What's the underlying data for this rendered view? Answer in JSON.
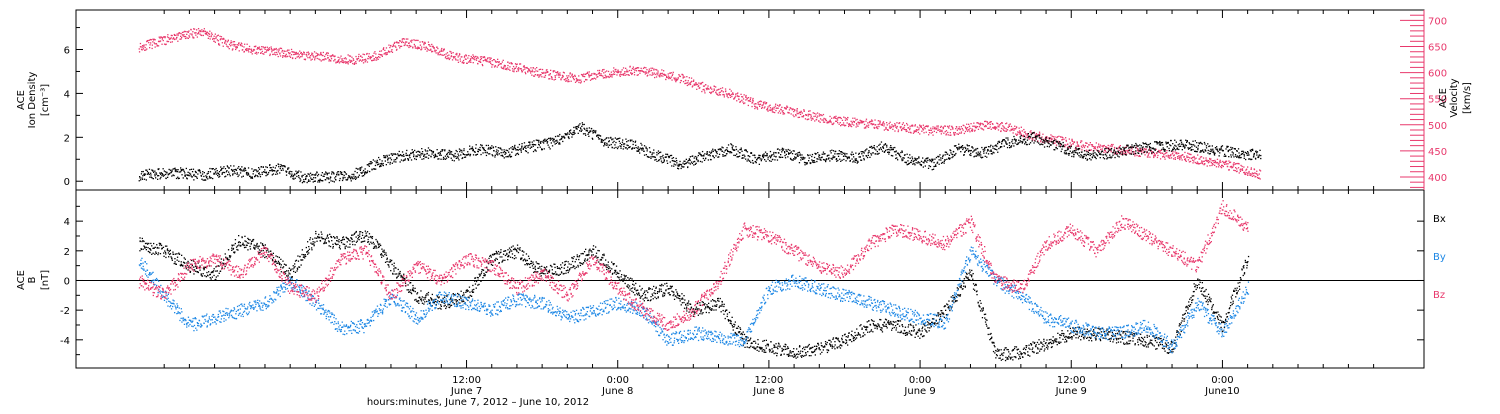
{
  "chart_data": {
    "x_start": "2012-06-06T05:00",
    "x_end": "2012-06-10T16:00",
    "x_tick_labels": [
      "12:00",
      "0:00",
      "12:00",
      "0:00",
      "12:00",
      "0:00"
    ],
    "x_tick_sublabels": [
      "June 7",
      "June 8",
      "June 8",
      "June 9",
      "June 9",
      "June10"
    ],
    "x_tick_hours": [
      31,
      43,
      55,
      67,
      79,
      91
    ],
    "xlabel": "hours:minutes, June  7, 2012 – June 10, 2012",
    "colors": {
      "black": "#000000",
      "pink": "#e8386c",
      "blue": "#1e88e5",
      "axis": "#000000"
    },
    "panels": [
      {
        "name": "plasma",
        "type": "scatter",
        "left_axis": {
          "label1": "ACE",
          "label2": "Ion Density",
          "units": "[cm⁻³]",
          "ylim": [
            -0.4,
            7.8
          ],
          "ticks": [
            0,
            2,
            4,
            6
          ]
        },
        "right_axis": {
          "label1": "ACE",
          "label2": "Velocity",
          "units": "[km/s]",
          "ylim": [
            375,
            720
          ],
          "ticks": [
            400,
            450,
            500,
            550,
            600,
            650,
            700
          ]
        },
        "series": [
          {
            "axis": "right",
            "color": "pink",
            "x": [
              5,
              8,
              10,
              12,
              14,
              16,
              18,
              20,
              22,
              24,
              26,
              28,
              30,
              32,
              34,
              36,
              38,
              40,
              42,
              44,
              46,
              48,
              50,
              52,
              54,
              56,
              58,
              60,
              62,
              64,
              66,
              68,
              70,
              72,
              74,
              76,
              78,
              80,
              82,
              84,
              86,
              88,
              90,
              92,
              94
            ],
            "y": [
              650,
              670,
              680,
              655,
              645,
              640,
              635,
              630,
              625,
              635,
              660,
              650,
              630,
              625,
              615,
              605,
              595,
              590,
              600,
              605,
              600,
              590,
              570,
              560,
              540,
              530,
              520,
              510,
              505,
              500,
              495,
              490,
              490,
              500,
              495,
              480,
              470,
              460,
              455,
              450,
              445,
              440,
              430,
              420,
              405
            ]
          },
          {
            "axis": "left",
            "color": "black",
            "x": [
              5,
              8,
              10,
              12,
              14,
              16,
              18,
              20,
              22,
              24,
              26,
              28,
              30,
              32,
              34,
              36,
              38,
              40,
              42,
              44,
              46,
              48,
              50,
              52,
              54,
              56,
              58,
              60,
              62,
              64,
              66,
              68,
              70,
              72,
              74,
              76,
              78,
              80,
              82,
              84,
              86,
              88,
              90,
              92,
              94
            ],
            "y": [
              0.3,
              0.4,
              0.3,
              0.5,
              0.4,
              0.6,
              0.2,
              0.2,
              0.3,
              0.9,
              1.2,
              1.3,
              1.2,
              1.5,
              1.3,
              1.6,
              1.8,
              2.5,
              1.8,
              1.7,
              1.2,
              0.8,
              1.2,
              1.5,
              1.0,
              1.3,
              1.0,
              1.2,
              1.1,
              1.6,
              1.0,
              0.8,
              1.5,
              1.3,
              1.8,
              2.0,
              1.6,
              1.2,
              1.3,
              1.5,
              1.6,
              1.7,
              1.5,
              1.3,
              1.2
            ]
          }
        ]
      },
      {
        "name": "magnetic-field",
        "type": "scatter",
        "left_axis": {
          "label1": "ACE",
          "label2": "B",
          "units": "[nT]",
          "ylim": [
            -5.9,
            6.1
          ],
          "ticks": [
            -4,
            -2,
            0,
            2,
            4
          ]
        },
        "legend": [
          "Bx",
          "By",
          "Bz"
        ],
        "series": [
          {
            "name": "Bx",
            "color": "black",
            "x": [
              5,
              7,
              9,
              11,
              13,
              15,
              17,
              19,
              21,
              23,
              25,
              27,
              29,
              31,
              33,
              35,
              37,
              39,
              41,
              43,
              45,
              47,
              49,
              51,
              53,
              55,
              57,
              59,
              61,
              63,
              65,
              67,
              69,
              71,
              73,
              75,
              77,
              79,
              81,
              83,
              85,
              87,
              89,
              91,
              93
            ],
            "y": [
              2.5,
              2.0,
              1.0,
              0.5,
              2.8,
              2.0,
              0.5,
              3.0,
              2.5,
              3.2,
              1.0,
              -1.0,
              -1.5,
              -1.0,
              1.5,
              2.0,
              0.5,
              1.0,
              2.0,
              0.5,
              -1.0,
              -0.5,
              -2.0,
              -1.5,
              -4.0,
              -4.5,
              -4.8,
              -4.6,
              -4.0,
              -3.0,
              -3.0,
              -3.5,
              -2.0,
              0.5,
              -5.0,
              -4.8,
              -4.2,
              -3.5,
              -3.6,
              -3.8,
              -4.0,
              -4.5,
              0.0,
              -3.0,
              1.5
            ]
          },
          {
            "name": "By",
            "color": "blue",
            "x": [
              5,
              7,
              9,
              11,
              13,
              15,
              17,
              19,
              21,
              23,
              25,
              27,
              29,
              31,
              33,
              35,
              37,
              39,
              41,
              43,
              45,
              47,
              49,
              51,
              53,
              55,
              57,
              59,
              61,
              63,
              65,
              67,
              69,
              71,
              73,
              75,
              77,
              79,
              81,
              83,
              85,
              87,
              89,
              91,
              93
            ],
            "y": [
              1.5,
              -1.0,
              -3.0,
              -2.5,
              -2.0,
              -1.5,
              0.0,
              -1.5,
              -3.2,
              -3.0,
              -1.0,
              -2.5,
              -1.0,
              -1.5,
              -2.0,
              -1.2,
              -1.5,
              -2.5,
              -2.0,
              -1.5,
              -2.0,
              -4.0,
              -3.5,
              -3.8,
              -4.0,
              -0.5,
              0.0,
              -0.5,
              -1.0,
              -1.5,
              -2.0,
              -2.5,
              -2.8,
              2.0,
              0.0,
              -1.0,
              -2.5,
              -3.0,
              -3.5,
              -3.5,
              -3.0,
              -4.5,
              -1.5,
              -3.5,
              -0.5
            ]
          },
          {
            "name": "Bz",
            "color": "pink",
            "x": [
              5,
              7,
              9,
              11,
              13,
              15,
              17,
              19,
              21,
              23,
              25,
              27,
              29,
              31,
              33,
              35,
              37,
              39,
              41,
              43,
              45,
              47,
              49,
              51,
              53,
              55,
              57,
              59,
              61,
              63,
              65,
              67,
              69,
              71,
              73,
              75,
              77,
              79,
              81,
              83,
              85,
              87,
              89,
              91,
              93
            ],
            "y": [
              0.0,
              -1.0,
              1.0,
              1.5,
              0.5,
              2.0,
              -0.5,
              -1.0,
              1.5,
              2.0,
              -1.0,
              1.0,
              0.0,
              1.5,
              1.0,
              -0.5,
              0.5,
              -1.0,
              1.5,
              -0.5,
              -2.0,
              -3.0,
              -2.0,
              0.0,
              3.5,
              3.0,
              2.0,
              1.0,
              0.5,
              2.5,
              3.5,
              3.0,
              2.5,
              4.0,
              0.0,
              -0.5,
              2.5,
              3.5,
              2.0,
              4.0,
              3.0,
              2.0,
              1.0,
              5.0,
              3.5
            ]
          }
        ]
      }
    ]
  }
}
